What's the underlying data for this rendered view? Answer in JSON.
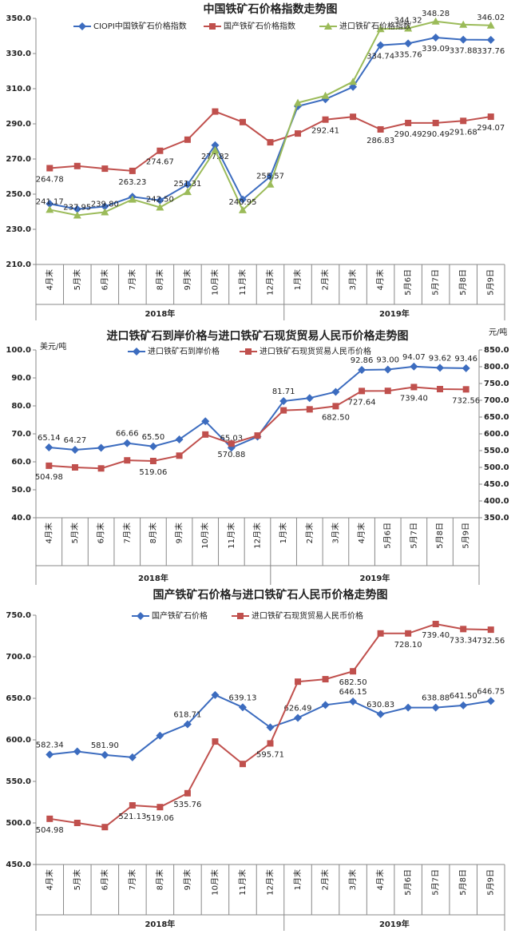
{
  "chart_data": [
    {
      "type": "line",
      "title": "中国铁矿石价格指数走势图",
      "category_groups": [
        {
          "name": "2018年",
          "categories": [
            "4月末",
            "5月末",
            "6月末",
            "7月末",
            "8月末",
            "9月末",
            "10月末",
            "11月末",
            "12月末"
          ]
        },
        {
          "name": "2019年",
          "categories": [
            "1月末",
            "2月末",
            "3月末",
            "4月末",
            "5月6日",
            "5月7日",
            "5月8日",
            "5月9日"
          ]
        }
      ],
      "ylim": [
        210,
        350
      ],
      "yticks": [
        {
          "value": 210,
          "label": "210.0"
        },
        {
          "value": 230,
          "label": "230.0"
        },
        {
          "value": 250,
          "label": "250.0"
        },
        {
          "value": 270,
          "label": "270.0"
        },
        {
          "value": 290,
          "label": "290.0"
        },
        {
          "value": 310,
          "label": "310.0"
        },
        {
          "value": 330,
          "label": "330.0"
        },
        {
          "value": 350,
          "label": "350.0"
        }
      ],
      "series": [
        {
          "name": "CIOPI中国铁矿石价格指数",
          "color": "#3c6cbf",
          "marker": "diamond",
          "values": [
            244.5,
            241.5,
            243,
            248.5,
            246.5,
            255.5,
            277.82,
            247,
            260,
            300,
            304,
            311,
            334.74,
            335.76,
            339.09,
            337.88,
            337.76
          ],
          "value_labels": [
            null,
            null,
            null,
            null,
            null,
            null,
            "277.82",
            null,
            null,
            null,
            null,
            null,
            "334.74",
            "335.76",
            "339.09",
            "337.88",
            "337.76"
          ]
        },
        {
          "name": "国产铁矿石价格指数",
          "color": "#c0504d",
          "marker": "square",
          "values": [
            264.78,
            266,
            264.5,
            263.23,
            274.67,
            281,
            297,
            291,
            279.5,
            284.5,
            292.41,
            294,
            286.83,
            290.49,
            290.49,
            291.68,
            294.07
          ],
          "value_labels": [
            "264.78",
            null,
            null,
            "263.23",
            "274.67",
            null,
            null,
            null,
            null,
            null,
            "292.41",
            null,
            "286.83",
            "290.49",
            "290.49",
            "291.68",
            "294.07"
          ]
        },
        {
          "name": "进口铁矿石价格指数",
          "color": "#9bbb59",
          "marker": "triangle",
          "values": [
            241.17,
            237.95,
            239.8,
            247,
            242.5,
            251.31,
            275,
            240.95,
            255.57,
            302,
            306,
            314,
            344,
            344.32,
            348.28,
            346.5,
            346.02
          ],
          "value_labels": [
            "241.17",
            "237.95",
            "239.80",
            null,
            "242.50",
            "251.31",
            null,
            "240.95",
            "255.57",
            null,
            null,
            null,
            null,
            "344.32",
            "348.28",
            null,
            "346.02"
          ]
        }
      ]
    },
    {
      "type": "line",
      "title": "进口铁矿石到岸价格与进口铁矿石现货贸易人民币价格走势图",
      "y_label": "美元/吨",
      "y2_label": "元/吨",
      "category_groups": [
        {
          "name": "2018年",
          "categories": [
            "4月末",
            "5月末",
            "6月末",
            "7月末",
            "8月末",
            "9月末",
            "10月末",
            "11月末",
            "12月末"
          ]
        },
        {
          "name": "2019年",
          "categories": [
            "1月末",
            "2月末",
            "3月末",
            "4月末",
            "5月6日",
            "5月7日",
            "5月8日",
            "5月9日"
          ]
        }
      ],
      "ylim": [
        40,
        100
      ],
      "yticks": [
        {
          "value": 40,
          "label": "40.0"
        },
        {
          "value": 50,
          "label": "50.0"
        },
        {
          "value": 60,
          "label": "60.0"
        },
        {
          "value": 70,
          "label": "70.0"
        },
        {
          "value": 80,
          "label": "80.0"
        },
        {
          "value": 90,
          "label": "90.0"
        },
        {
          "value": 100,
          "label": "100.0"
        }
      ],
      "y2lim": [
        350,
        850
      ],
      "y2ticks": [
        {
          "value": 350,
          "label": "350.0"
        },
        {
          "value": 400,
          "label": "400.0"
        },
        {
          "value": 450,
          "label": "450.0"
        },
        {
          "value": 500,
          "label": "500.0"
        },
        {
          "value": 550,
          "label": "550.0"
        },
        {
          "value": 600,
          "label": "600.0"
        },
        {
          "value": 650,
          "label": "650.0"
        },
        {
          "value": 700,
          "label": "700.0"
        },
        {
          "value": 750,
          "label": "750.0"
        },
        {
          "value": 800,
          "label": "800.0"
        },
        {
          "value": 850,
          "label": "850.0"
        }
      ],
      "series": [
        {
          "name": "进口铁矿石到岸价格",
          "color": "#3c6cbf",
          "marker": "diamond",
          "values": [
            65.14,
            64.27,
            65,
            66.66,
            65.5,
            68,
            74.5,
            65.03,
            69,
            81.71,
            82.8,
            85,
            92.86,
            93,
            94.07,
            93.62,
            93.46
          ],
          "value_labels": [
            "65.14",
            "64.27",
            null,
            "66.66",
            "65.50",
            null,
            null,
            "65.03",
            null,
            "81.71",
            null,
            null,
            "92.86",
            "93.00",
            "94.07",
            "93.62",
            "93.46"
          ]
        },
        {
          "name": "进口铁矿石现货贸易人民币价格",
          "color": "#c0504d",
          "marker": "square",
          "axis": "y2",
          "values": [
            504.98,
            500,
            497,
            521,
            519.06,
            535,
            598,
            570.88,
            595,
            670,
            673,
            682.5,
            727.64,
            728.1,
            739.4,
            733.34,
            732.56
          ],
          "value_labels": [
            "504.98",
            null,
            null,
            null,
            "519.06",
            null,
            null,
            "570.88",
            null,
            null,
            null,
            "682.50",
            "727.64",
            null,
            "739.40",
            null,
            "732.56"
          ]
        }
      ]
    },
    {
      "type": "line",
      "title": "国产铁矿石价格与进口铁矿石人民币价格走势图",
      "category_groups": [
        {
          "name": "2018年",
          "categories": [
            "4月末",
            "5月末",
            "6月末",
            "7月末",
            "8月末",
            "9月末",
            "10月末",
            "11月末",
            "12月末"
          ]
        },
        {
          "name": "2019年",
          "categories": [
            "1月末",
            "2月末",
            "3月末",
            "4月末",
            "5月6日",
            "5月7日",
            "5月8日",
            "5月9日"
          ]
        }
      ],
      "ylim": [
        450,
        750
      ],
      "yticks": [
        {
          "value": 450,
          "label": "450.0"
        },
        {
          "value": 500,
          "label": "500.0"
        },
        {
          "value": 550,
          "label": "550.0"
        },
        {
          "value": 600,
          "label": "600.0"
        },
        {
          "value": 650,
          "label": "650.0"
        },
        {
          "value": 700,
          "label": "700.0"
        },
        {
          "value": 750,
          "label": "750.0"
        }
      ],
      "series": [
        {
          "name": "国产铁矿石价格",
          "color": "#3c6cbf",
          "marker": "diamond",
          "values": [
            582.34,
            586,
            581.9,
            579,
            605,
            618.71,
            654,
            639.13,
            615,
            626.49,
            642,
            646.15,
            630.83,
            638.88,
            638.88,
            641.5,
            646.75
          ],
          "value_labels": [
            "582.34",
            null,
            "581.90",
            null,
            null,
            "618.71",
            null,
            "639.13",
            null,
            "626.49",
            null,
            "646.15",
            "630.83",
            null,
            "638.88",
            "641.50",
            "646.75"
          ]
        },
        {
          "name": "进口铁矿石现货贸易人民币价格",
          "color": "#c0504d",
          "marker": "square",
          "values": [
            504.98,
            500,
            495,
            521.13,
            519.06,
            535.76,
            598,
            571,
            595.71,
            670,
            673,
            682.5,
            728.1,
            728.1,
            739.4,
            733.34,
            732.56
          ],
          "value_labels": [
            "504.98",
            null,
            null,
            "521.13",
            "519.06",
            "535.76",
            null,
            null,
            "595.71",
            null,
            null,
            "682.50",
            null,
            "728.10",
            "739.40",
            "733.34",
            "732.56"
          ]
        }
      ]
    }
  ]
}
